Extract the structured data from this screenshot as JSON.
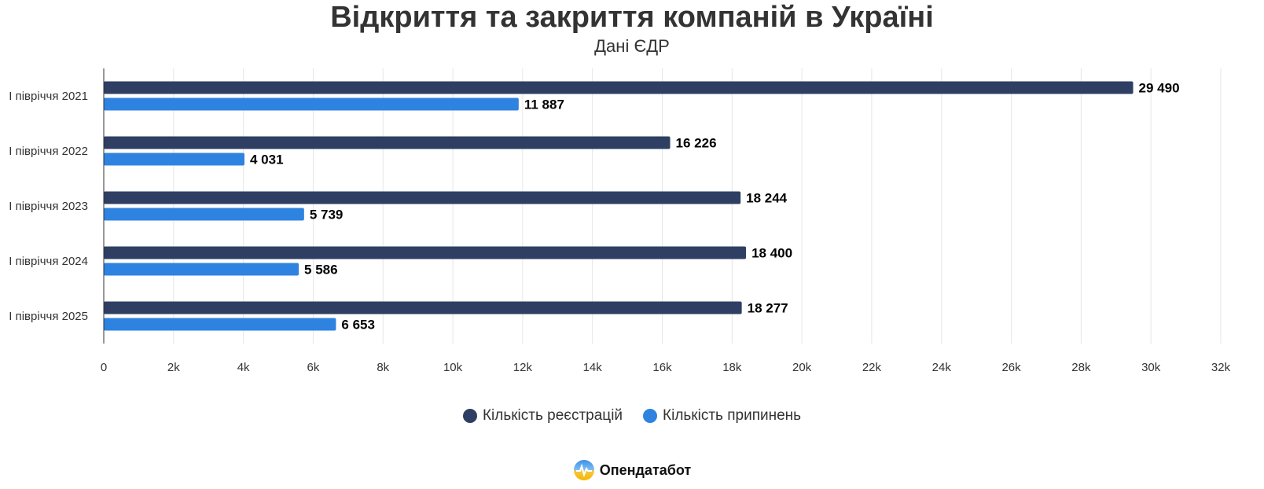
{
  "chart_data": {
    "type": "bar",
    "orientation": "horizontal",
    "title": "Відкриття та закриття компаній в Україні",
    "subtitle": "Дані ЄДР",
    "categories": [
      "І півріччя 2021",
      "І півріччя 2022",
      "І півріччя 2023",
      "І півріччя 2024",
      "І півріччя 2025"
    ],
    "series": [
      {
        "name": "Кількість реєстрацій",
        "color": "#2e3f63",
        "values": [
          29490,
          16226,
          18244,
          18400,
          18277
        ],
        "labels": [
          "29 490",
          "16 226",
          "18 244",
          "18 400",
          "18 277"
        ]
      },
      {
        "name": "Кількість припинень",
        "color": "#2f83e0",
        "values": [
          11887,
          4031,
          5739,
          5586,
          6653
        ],
        "labels": [
          "11 887",
          "4 031",
          "5 739",
          "5 586",
          "6 653"
        ]
      }
    ],
    "xlim": [
      0,
      32000
    ],
    "xticks": [
      0,
      2000,
      4000,
      6000,
      8000,
      10000,
      12000,
      14000,
      16000,
      18000,
      20000,
      22000,
      24000,
      26000,
      28000,
      30000,
      32000
    ],
    "xtick_labels": [
      "0",
      "2k",
      "4k",
      "6k",
      "8k",
      "10k",
      "12k",
      "14k",
      "16k",
      "18k",
      "20k",
      "22k",
      "24k",
      "26k",
      "28k",
      "30k",
      "32k"
    ],
    "grid": true,
    "legend_position": "bottom"
  },
  "branding": {
    "name": "Опендатабот",
    "icon": "opendatabot-logo-icon"
  }
}
